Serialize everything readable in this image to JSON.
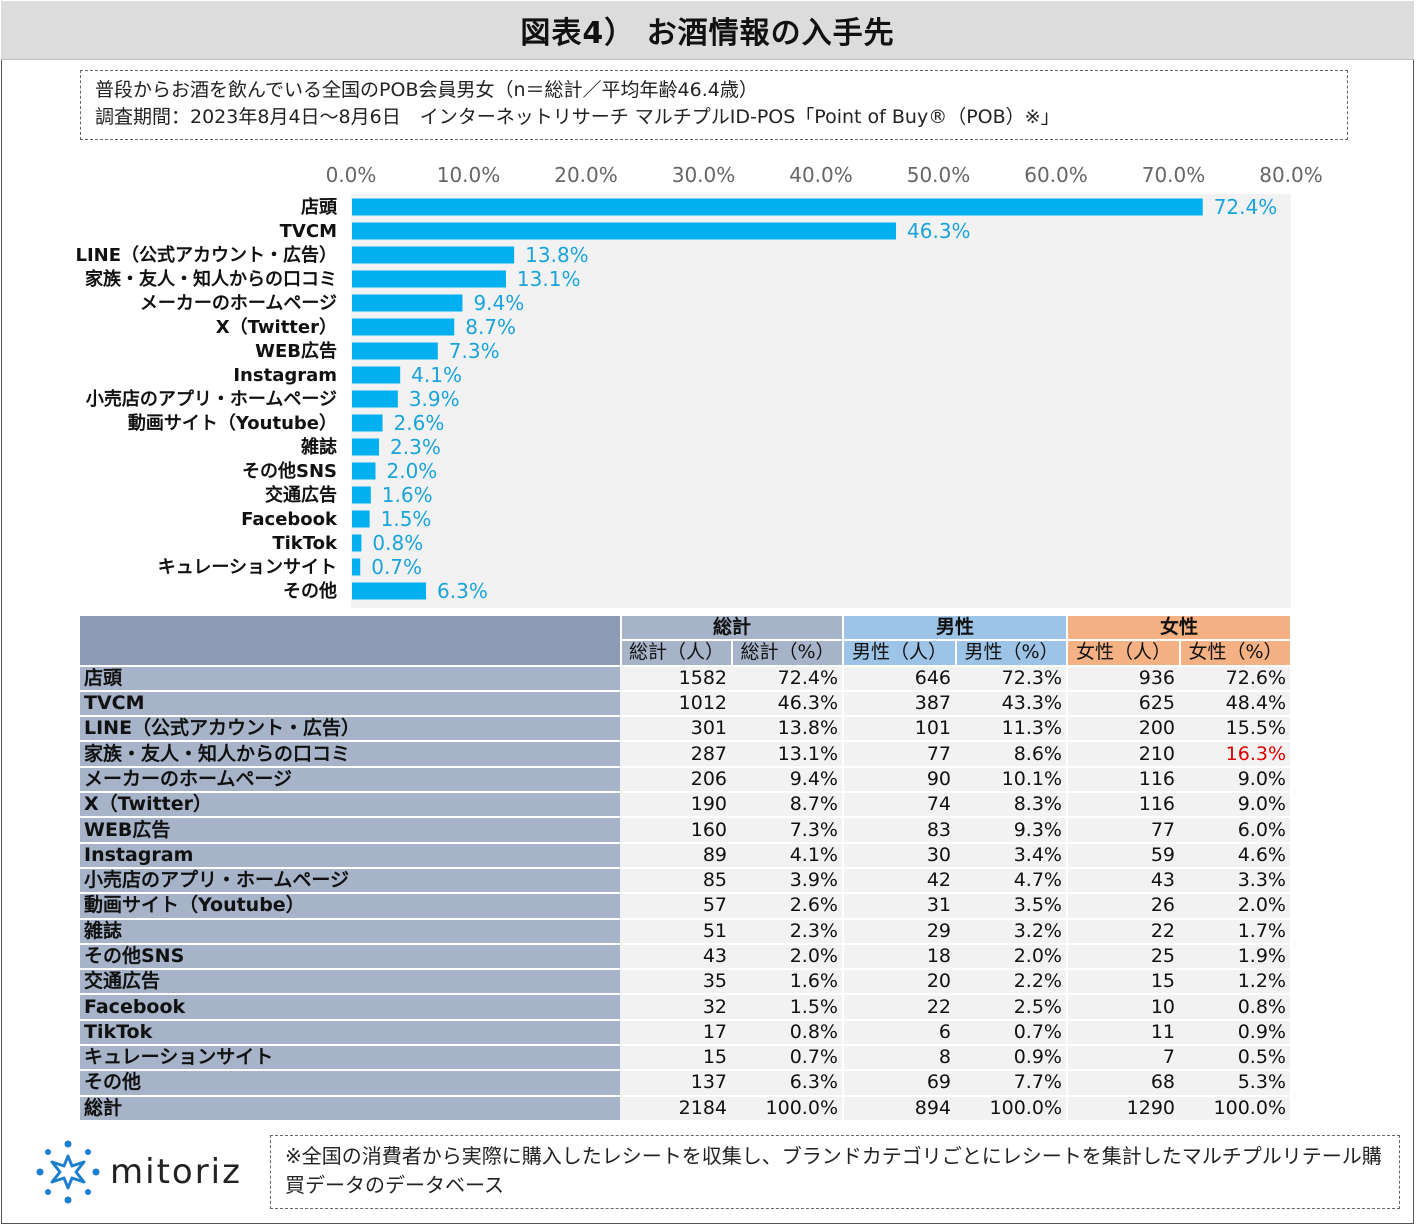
{
  "header": {
    "title": "図表4） お酒情報の入手先"
  },
  "info": {
    "line1": "普段からお酒を飲んでいる全国のPOB会員男女（n＝総計／平均年齢46.4歳）",
    "line2": "調査期間：2023年8月4日～8月6日　インターネットリサーチ マルチプルID-POS「Point of Buy®（POB）※」"
  },
  "chart_data": {
    "type": "bar",
    "orientation": "horizontal",
    "title": "",
    "xlim": [
      0,
      80
    ],
    "ticks": [
      "0.0%",
      "10.0%",
      "20.0%",
      "30.0%",
      "40.0%",
      "50.0%",
      "60.0%",
      "70.0%",
      "80.0%"
    ],
    "tick_values": [
      0,
      10,
      20,
      30,
      40,
      50,
      60,
      70,
      80
    ],
    "categories": [
      "店頭",
      "TVCM",
      "LINE（公式アカウント・広告）",
      "家族・友人・知人からの口コミ",
      "メーカーのホームページ",
      "X（Twitter）",
      "WEB広告",
      "Instagram",
      "小売店のアプリ・ホームページ",
      "動画サイト（Youtube）",
      "雑誌",
      "その他SNS",
      "交通広告",
      "Facebook",
      "TikTok",
      "キュレーションサイト",
      "その他"
    ],
    "values": [
      72.4,
      46.3,
      13.8,
      13.1,
      9.4,
      8.7,
      7.3,
      4.1,
      3.9,
      2.6,
      2.3,
      2.0,
      1.6,
      1.5,
      0.8,
      0.7,
      6.3
    ],
    "labels": [
      "72.4%",
      "46.3%",
      "13.8%",
      "13.1%",
      "9.4%",
      "8.7%",
      "7.3%",
      "4.1%",
      "3.9%",
      "2.6%",
      "2.3%",
      "2.0%",
      "1.6%",
      "1.5%",
      "0.8%",
      "0.7%",
      "6.3%"
    ],
    "bar_color": "#00b0f0",
    "plot_bg": "#f2f2f2",
    "label_color": "#1aa4dc"
  },
  "table": {
    "groups": {
      "total": "総計",
      "male": "男性",
      "female": "女性"
    },
    "columns": [
      "総計（人）",
      "総計（%）",
      "男性（人）",
      "男性（%）",
      "女性（人）",
      "女性（%）"
    ],
    "rows": [
      {
        "label": "店頭",
        "cells": [
          "1582",
          "72.4%",
          "646",
          "72.3%",
          "936",
          "72.6%"
        ]
      },
      {
        "label": "TVCM",
        "cells": [
          "1012",
          "46.3%",
          "387",
          "43.3%",
          "625",
          "48.4%"
        ]
      },
      {
        "label": "LINE（公式アカウント・広告）",
        "cells": [
          "301",
          "13.8%",
          "101",
          "11.3%",
          "200",
          "15.5%"
        ]
      },
      {
        "label": "家族・友人・知人からの口コミ",
        "cells": [
          "287",
          "13.1%",
          "77",
          "8.6%",
          "210",
          "16.3%"
        ]
      },
      {
        "label": "メーカーのホームページ",
        "cells": [
          "206",
          "9.4%",
          "90",
          "10.1%",
          "116",
          "9.0%"
        ]
      },
      {
        "label": "X（Twitter）",
        "cells": [
          "190",
          "8.7%",
          "74",
          "8.3%",
          "116",
          "9.0%"
        ]
      },
      {
        "label": "WEB広告",
        "cells": [
          "160",
          "7.3%",
          "83",
          "9.3%",
          "77",
          "6.0%"
        ]
      },
      {
        "label": "Instagram",
        "cells": [
          "89",
          "4.1%",
          "30",
          "3.4%",
          "59",
          "4.6%"
        ]
      },
      {
        "label": "小売店のアプリ・ホームページ",
        "cells": [
          "85",
          "3.9%",
          "42",
          "4.7%",
          "43",
          "3.3%"
        ]
      },
      {
        "label": "動画サイト（Youtube）",
        "cells": [
          "57",
          "2.6%",
          "31",
          "3.5%",
          "26",
          "2.0%"
        ]
      },
      {
        "label": "雑誌",
        "cells": [
          "51",
          "2.3%",
          "29",
          "3.2%",
          "22",
          "1.7%"
        ]
      },
      {
        "label": "その他SNS",
        "cells": [
          "43",
          "2.0%",
          "18",
          "2.0%",
          "25",
          "1.9%"
        ]
      },
      {
        "label": "交通広告",
        "cells": [
          "35",
          "1.6%",
          "20",
          "2.2%",
          "15",
          "1.2%"
        ]
      },
      {
        "label": "Facebook",
        "cells": [
          "32",
          "1.5%",
          "22",
          "2.5%",
          "10",
          "0.8%"
        ]
      },
      {
        "label": "TikTok",
        "cells": [
          "17",
          "0.8%",
          "6",
          "0.7%",
          "11",
          "0.9%"
        ]
      },
      {
        "label": "キュレーションサイト",
        "cells": [
          "15",
          "0.7%",
          "8",
          "0.9%",
          "7",
          "0.5%"
        ]
      },
      {
        "label": "その他",
        "cells": [
          "137",
          "6.3%",
          "69",
          "7.7%",
          "68",
          "5.3%"
        ]
      },
      {
        "label": "総計",
        "cells": [
          "2184",
          "100.0%",
          "894",
          "100.0%",
          "1290",
          "100.0%"
        ]
      }
    ],
    "highlight": {
      "row": 3,
      "col": 5,
      "color": "#e00000"
    }
  },
  "logo": {
    "text": "mitoriz",
    "icon": "sparkle-logo-icon"
  },
  "footnote": {
    "text": "※全国の消費者から実際に購入したレシートを収集し、ブランドカテゴリごとにレシートを集計したマルチプルリテール購買データのデータベース"
  }
}
